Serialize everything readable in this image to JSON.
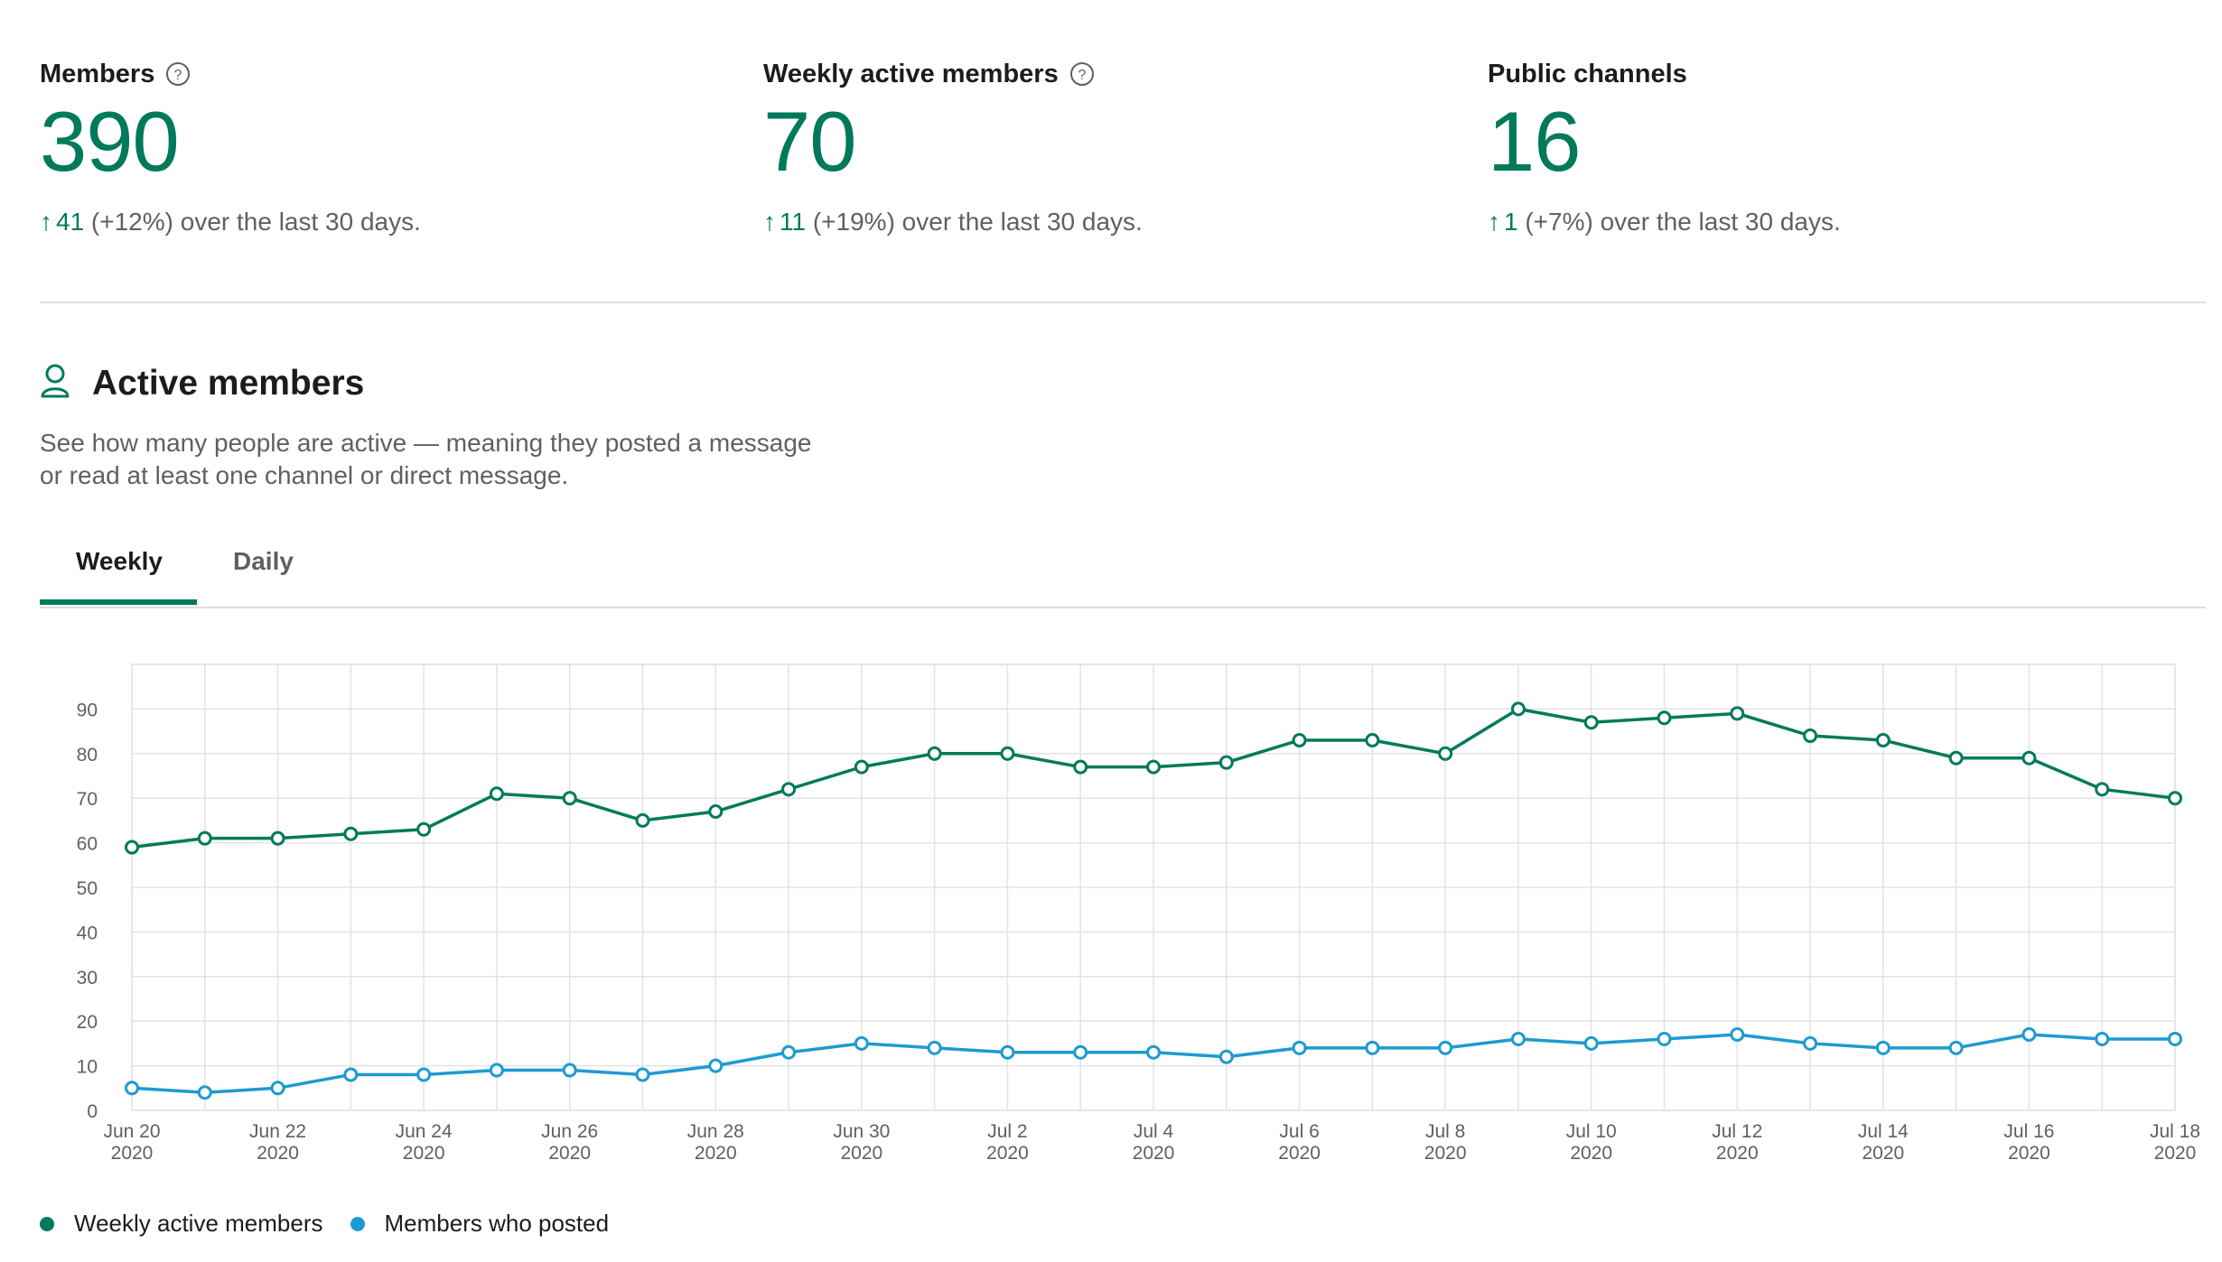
{
  "stats": [
    {
      "label": "Members",
      "has_help": true,
      "value": "390",
      "arrow": "↑",
      "delta": "41",
      "suffix": " (+12%) over the last 30 days."
    },
    {
      "label": "Weekly active members",
      "has_help": true,
      "value": "70",
      "arrow": "↑",
      "delta": "11",
      "suffix": " (+19%) over the last 30 days."
    },
    {
      "label": "Public channels",
      "has_help": false,
      "value": "16",
      "arrow": "↑",
      "delta": "1",
      "suffix": " (+7%) over the last 30 days."
    }
  ],
  "section": {
    "icon": "person-icon",
    "title": "Active members",
    "description_line1": "See how many people are active — meaning they posted a message",
    "description_line2": "or read at least one channel or direct message."
  },
  "tabs": [
    {
      "label": "Weekly",
      "selected": true
    },
    {
      "label": "Daily",
      "selected": false
    }
  ],
  "colors": {
    "accent": "#007a5a",
    "series_1": "#007a5a",
    "series_2": "#1d9bd1"
  },
  "chart_data": {
    "type": "line",
    "x_tick_labels": [
      [
        "Jun 20",
        "2020"
      ],
      [
        "Jun 22",
        "2020"
      ],
      [
        "Jun 24",
        "2020"
      ],
      [
        "Jun 26",
        "2020"
      ],
      [
        "Jun 28",
        "2020"
      ],
      [
        "Jun 30",
        "2020"
      ],
      [
        "Jul 2",
        "2020"
      ],
      [
        "Jul 4",
        "2020"
      ],
      [
        "Jul 6",
        "2020"
      ],
      [
        "Jul 8",
        "2020"
      ],
      [
        "Jul 10",
        "2020"
      ],
      [
        "Jul 12",
        "2020"
      ],
      [
        "Jul 14",
        "2020"
      ],
      [
        "Jul 16",
        "2020"
      ],
      [
        "Jul 18",
        "2020"
      ]
    ],
    "x": [
      "2020-06-20",
      "2020-06-21",
      "2020-06-22",
      "2020-06-23",
      "2020-06-24",
      "2020-06-25",
      "2020-06-26",
      "2020-06-27",
      "2020-06-28",
      "2020-06-29",
      "2020-06-30",
      "2020-07-01",
      "2020-07-02",
      "2020-07-03",
      "2020-07-04",
      "2020-07-05",
      "2020-07-06",
      "2020-07-07",
      "2020-07-08",
      "2020-07-09",
      "2020-07-10",
      "2020-07-11",
      "2020-07-12",
      "2020-07-13",
      "2020-07-14",
      "2020-07-15",
      "2020-07-16",
      "2020-07-17",
      "2020-07-18"
    ],
    "series": [
      {
        "name": "Weekly active members",
        "color": "#007a5a",
        "values": [
          59,
          61,
          61,
          62,
          63,
          71,
          70,
          65,
          67,
          72,
          77,
          80,
          80,
          77,
          77,
          78,
          83,
          83,
          80,
          90,
          87,
          88,
          89,
          84,
          83,
          79,
          79,
          72,
          70
        ]
      },
      {
        "name": "Members who posted",
        "color": "#1d9bd1",
        "values": [
          5,
          4,
          5,
          8,
          8,
          9,
          9,
          8,
          10,
          13,
          15,
          14,
          13,
          13,
          13,
          12,
          14,
          14,
          14,
          16,
          15,
          16,
          17,
          15,
          14,
          14,
          17,
          16,
          16
        ]
      }
    ],
    "y_ticks": [
      0,
      10,
      20,
      30,
      40,
      50,
      60,
      70,
      80,
      90
    ],
    "ylim": [
      0,
      100
    ],
    "grid": true,
    "legend_position": "bottom-left"
  }
}
